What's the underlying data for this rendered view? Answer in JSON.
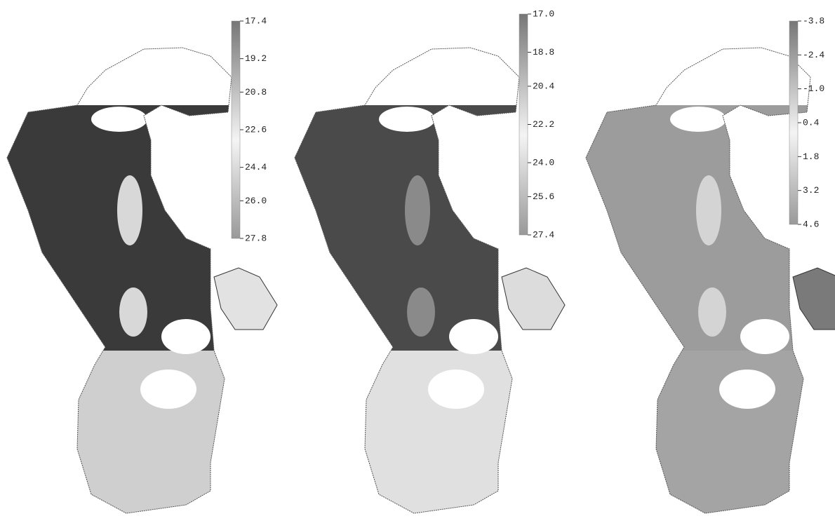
{
  "maps": [
    {
      "colorbar": {
        "range": [
          17.4,
          27.8
        ],
        "ticks": [
          17.4,
          19.2,
          20.8,
          22.6,
          24.4,
          {
            "value": 26,
            "label": "26.0"
          },
          27.8
        ]
      }
    },
    {
      "colorbar": {
        "range": [
          17,
          27.4
        ],
        "ticks": [
          {
            "value": 17,
            "label": "17.0"
          },
          18.8,
          20.4,
          22.2,
          {
            "value": 24,
            "label": "24.0"
          },
          25.6,
          27.4
        ]
      }
    },
    {
      "colorbar": {
        "range": [
          -3.8,
          4.6
        ],
        "ticks": [
          -3.8,
          -2.4,
          {
            "value": -1,
            "label": "-1.0"
          },
          0.4,
          1.8,
          3.2,
          4.6
        ]
      }
    }
  ]
}
